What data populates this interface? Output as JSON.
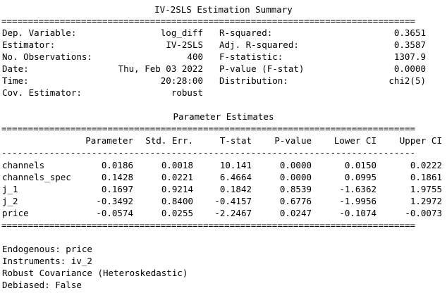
{
  "title": "IV-2SLS Estimation Summary",
  "rules": {
    "double": "==============================================================================",
    "single": "------------------------------------------------------------------------------"
  },
  "summary": {
    "rows": [
      {
        "label1": "Dep. Variable:",
        "value1": "log_diff",
        "label2": "R-squared:",
        "value2": "0.3651"
      },
      {
        "label1": "Estimator:",
        "value1": "IV-2SLS",
        "label2": "Adj. R-squared:",
        "value2": "0.3587"
      },
      {
        "label1": "No. Observations:",
        "value1": "400",
        "label2": "F-statistic:",
        "value2": "1307.9"
      },
      {
        "label1": "Date:",
        "value1": "Thu, Feb 03 2022",
        "label2": "P-value (F-stat)",
        "value2": "0.0000"
      },
      {
        "label1": "Time:",
        "value1": "20:28:00",
        "label2": "Distribution:",
        "value2": "chi2(5)"
      },
      {
        "label1": "Cov. Estimator:",
        "value1": "robust",
        "label2": "",
        "value2": ""
      }
    ]
  },
  "params": {
    "title": "Parameter Estimates",
    "headers": [
      "Parameter",
      "Std. Err.",
      "T-stat",
      "P-value",
      "Lower CI",
      "Upper CI"
    ],
    "rows": [
      {
        "name": "channels",
        "values": [
          "0.0186",
          "0.0018",
          "10.141",
          "0.0000",
          "0.0150",
          "0.0222"
        ]
      },
      {
        "name": "channels_spec",
        "values": [
          "0.1428",
          "0.0221",
          "6.4664",
          "0.0000",
          "0.0995",
          "0.1861"
        ]
      },
      {
        "name": "j_1",
        "values": [
          "0.1697",
          "0.9214",
          "0.1842",
          "0.8539",
          "-1.6362",
          "1.9755"
        ]
      },
      {
        "name": "j_2",
        "values": [
          "-0.3492",
          "0.8400",
          "-0.4157",
          "0.6776",
          "-1.9956",
          "1.2972"
        ]
      },
      {
        "name": "price",
        "values": [
          "-0.0574",
          "0.0255",
          "-2.2467",
          "0.0247",
          "-0.1074",
          "-0.0073"
        ]
      }
    ]
  },
  "notes": {
    "endogenous": "Endogenous: price",
    "instruments": "Instruments: iv_2",
    "robust": "Robust Covariance (Heteroskedastic)",
    "debiased": "Debiased: False"
  }
}
